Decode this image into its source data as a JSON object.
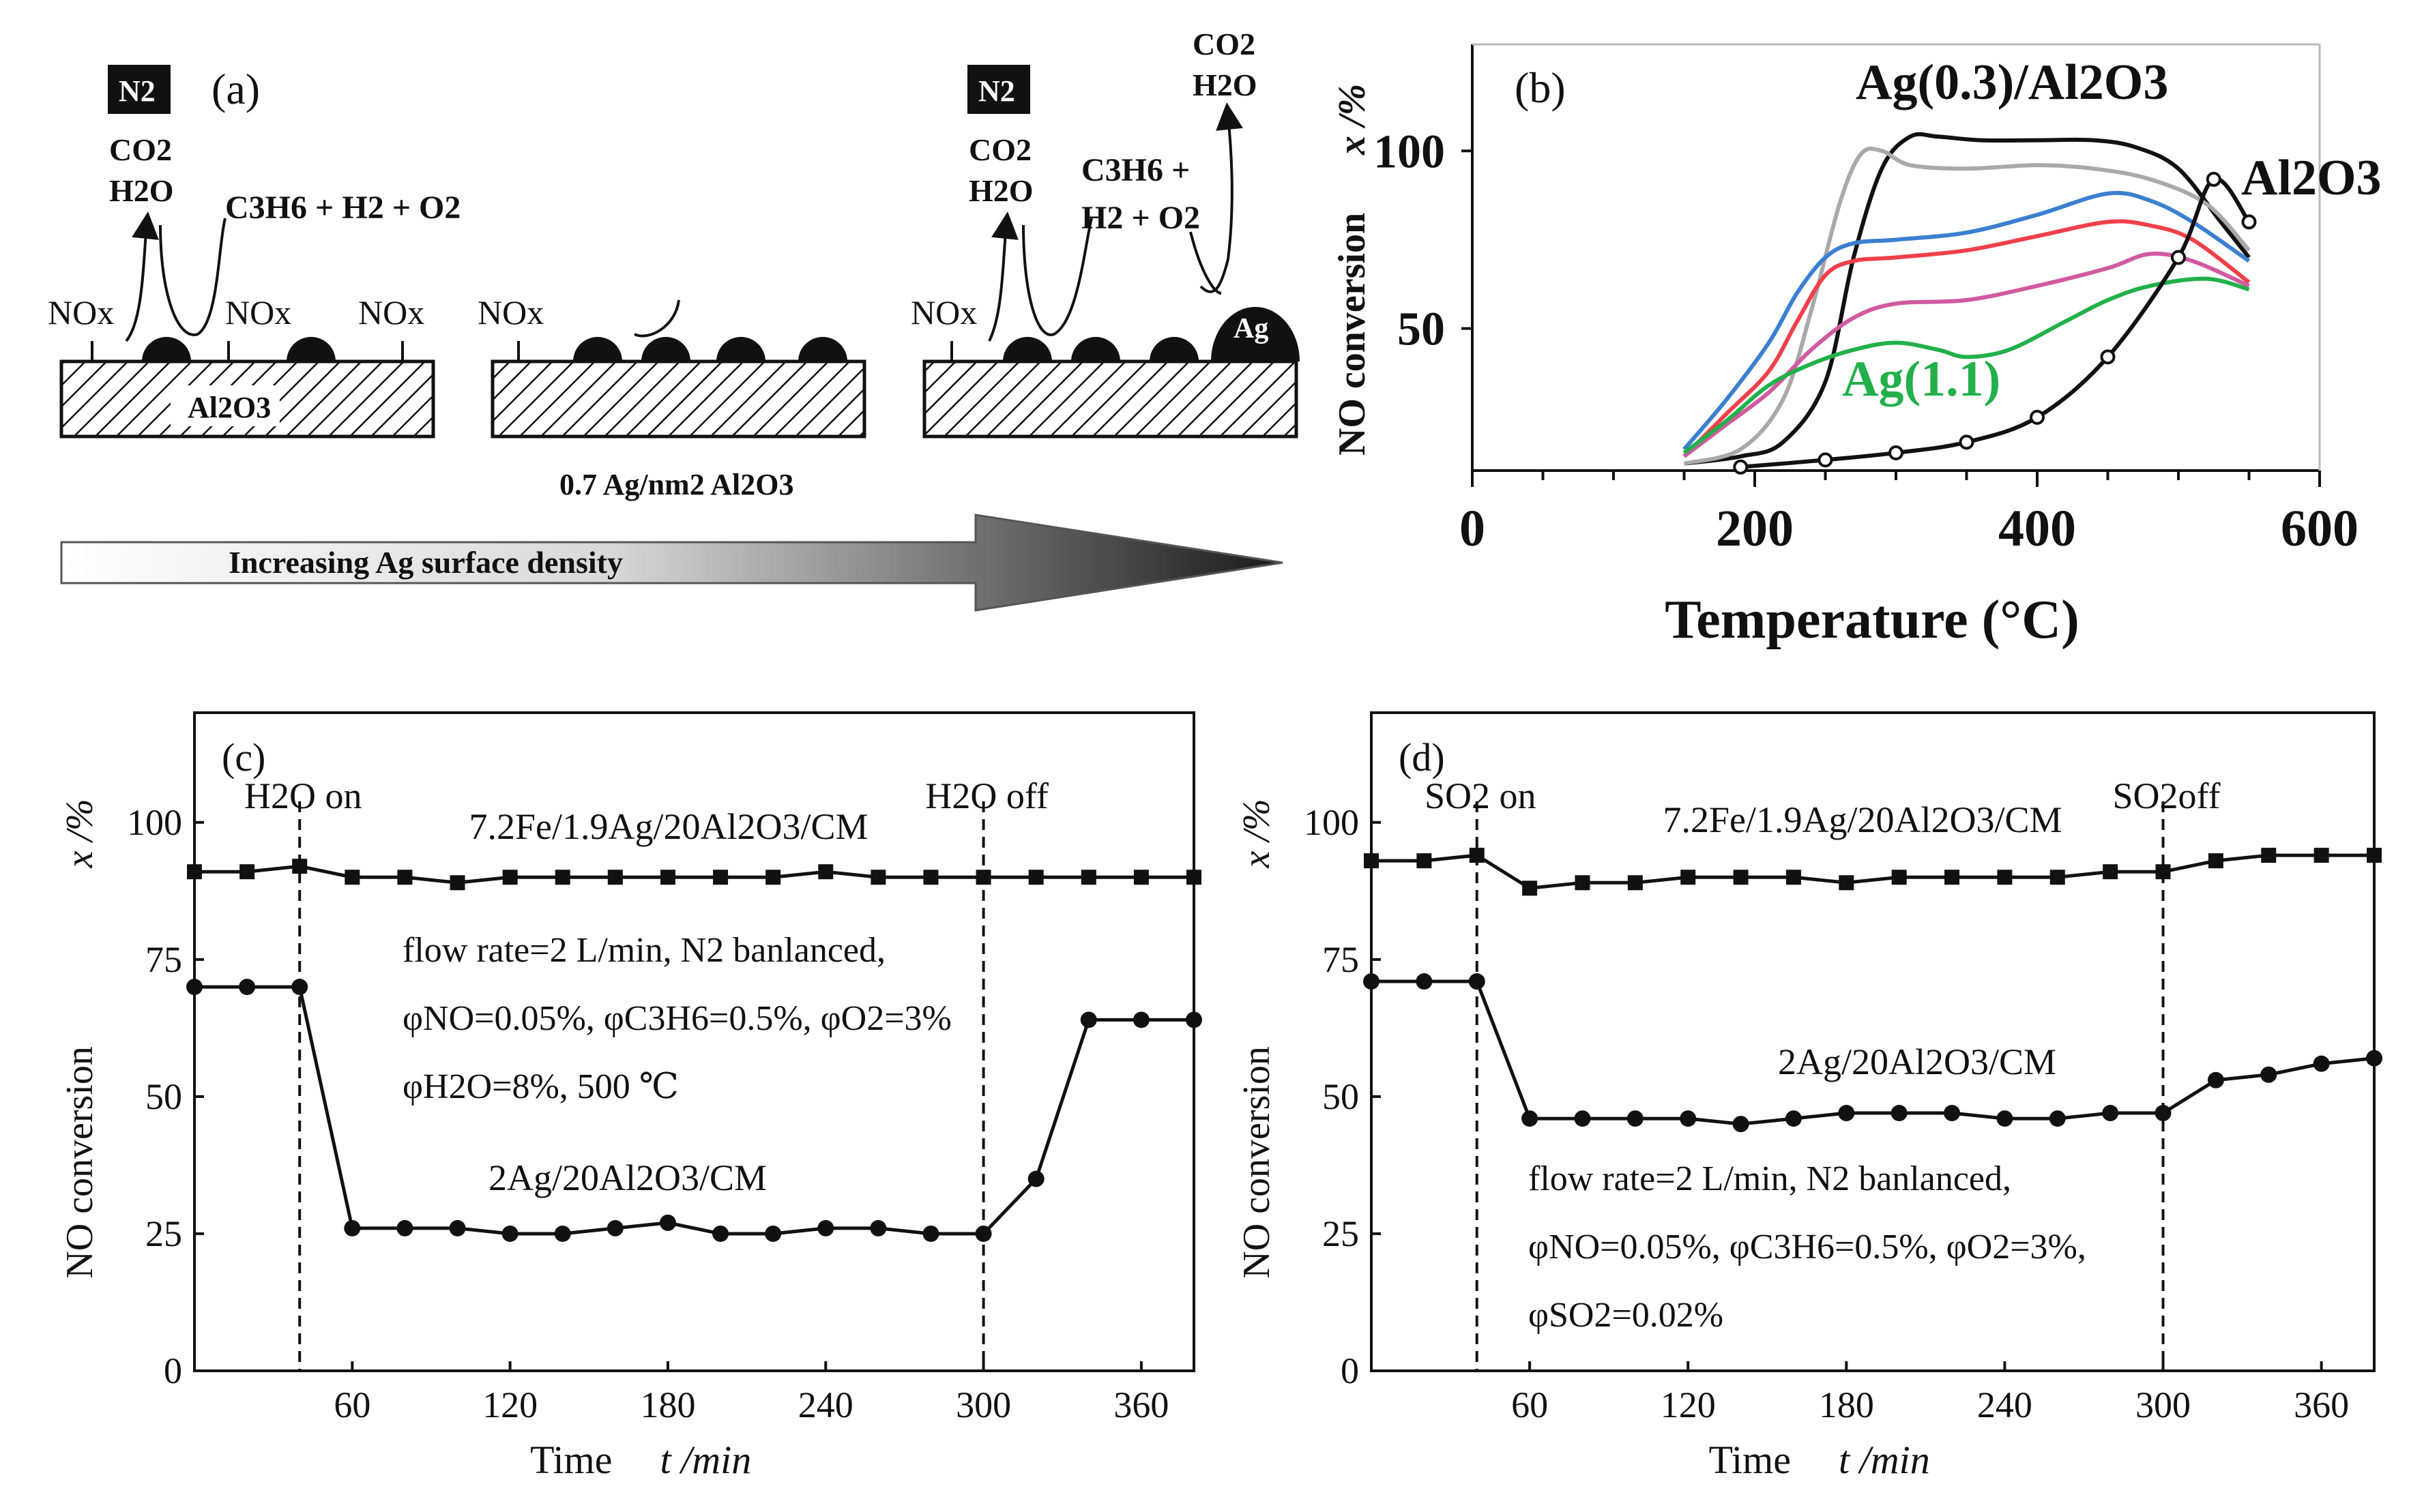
{
  "panel_a": {
    "label": "(a)",
    "n2_badge": "N2",
    "co2": "CO2",
    "h2o": "H2O",
    "reactants_left": "C3H6 + H2 + O2",
    "reactants_right_line1": "C3H6 +",
    "reactants_right_line2": "H2 + O2",
    "nox": "NOx",
    "support": "Al2O3",
    "ag_label": "Ag",
    "density_label": "0.7 Ag/nm2 Al2O3",
    "arrow_label": "Increasing Ag surface density"
  },
  "colors": {
    "black": "#111111",
    "gray": "#a9a9a9",
    "blue": "#3b7fd0",
    "red": "#f0404a",
    "magenta": "#d05aa0",
    "green": "#22b04a",
    "green_label": "#22b04a"
  },
  "chart_data": [
    {
      "panel": "(b)",
      "type": "line",
      "title": "",
      "xlabel": "Temperature (°C)",
      "ylabel": "NO conversion",
      "ylabel_unit": "x /%",
      "xlim": [
        0,
        600
      ],
      "ylim": [
        10,
        130
      ],
      "xticks": [
        0,
        200,
        400,
        600
      ],
      "yticks": [
        50,
        100
      ],
      "annotations": [
        "Ag(0.3)/Al2O3",
        "Al2O3",
        "Ag(1.1)"
      ],
      "series": [
        {
          "name": "Ag(0.3)/Al2O3",
          "color": "black",
          "x": [
            150,
            190,
            220,
            250,
            270,
            290,
            310,
            330,
            360,
            400,
            440,
            470,
            500,
            530,
            550
          ],
          "y": [
            12,
            14,
            18,
            35,
            70,
            95,
            104,
            104,
            103,
            103,
            103,
            101,
            95,
            80,
            70
          ]
        },
        {
          "name": "gray",
          "color": "gray",
          "x": [
            150,
            190,
            220,
            240,
            260,
            275,
            290,
            310,
            350,
            400,
            440,
            480,
            520,
            550
          ],
          "y": [
            12,
            16,
            30,
            55,
            85,
            99,
            100,
            96,
            95,
            96,
            95,
            92,
            85,
            72
          ]
        },
        {
          "name": "blue",
          "color": "blue",
          "x": [
            150,
            180,
            210,
            230,
            250,
            270,
            300,
            350,
            400,
            450,
            480,
            510,
            550
          ],
          "y": [
            16,
            30,
            46,
            60,
            70,
            74,
            75,
            77,
            82,
            88,
            86,
            80,
            69
          ]
        },
        {
          "name": "red",
          "color": "red",
          "x": [
            150,
            180,
            210,
            230,
            250,
            270,
            300,
            350,
            400,
            450,
            480,
            510,
            550
          ],
          "y": [
            14,
            26,
            38,
            52,
            65,
            69,
            70,
            72,
            76,
            80,
            79,
            75,
            63
          ]
        },
        {
          "name": "magenta",
          "color": "magenta",
          "x": [
            150,
            180,
            210,
            240,
            270,
            300,
            350,
            400,
            450,
            480,
            510,
            550
          ],
          "y": [
            14,
            23,
            32,
            44,
            53,
            57,
            58,
            62,
            67,
            71,
            69,
            62
          ]
        },
        {
          "name": "Ag(1.1)",
          "color": "green",
          "x": [
            150,
            180,
            210,
            240,
            270,
            300,
            330,
            350,
            380,
            420,
            450,
            480,
            520,
            550
          ],
          "y": [
            15,
            24,
            34,
            40,
            44,
            46,
            44,
            42,
            44,
            52,
            58,
            62,
            64,
            61
          ]
        },
        {
          "name": "Al2O3",
          "color": "black",
          "markers": true,
          "x": [
            190,
            250,
            300,
            350,
            400,
            450,
            500,
            525,
            550
          ],
          "y": [
            11,
            13,
            15,
            18,
            25,
            42,
            70,
            92,
            80
          ]
        }
      ]
    },
    {
      "panel": "(c)",
      "type": "line",
      "title": "",
      "xlabel": "Time",
      "xlabel_unit": "t /min",
      "ylabel": "NO conversion",
      "ylabel_unit": "x /%",
      "xlim": [
        0,
        380
      ],
      "ylim": [
        0,
        120
      ],
      "xticks": [
        60,
        120,
        180,
        240,
        300,
        360
      ],
      "yticks": [
        0,
        25,
        50,
        75,
        100
      ],
      "vlines": [
        {
          "x": 40,
          "label": "H2O on"
        },
        {
          "x": 300,
          "label": "H2O off"
        }
      ],
      "annotations": [
        "flow rate=2 L/min, N2 banlanced,",
        "φNO=0.05%, φC3H6=0.5%, φO2=3%",
        "φH2O=8%, 500 ℃"
      ],
      "series": [
        {
          "name": "7.2Fe/1.9Ag/20Al2O3/CM",
          "marker": "square",
          "x": [
            0,
            20,
            40,
            60,
            80,
            100,
            120,
            140,
            160,
            180,
            200,
            220,
            240,
            260,
            280,
            300,
            320,
            340,
            360,
            380
          ],
          "y": [
            91,
            91,
            92,
            90,
            90,
            89,
            90,
            90,
            90,
            90,
            90,
            90,
            91,
            90,
            90,
            90,
            90,
            90,
            90,
            90
          ]
        },
        {
          "name": "2Ag/20Al2O3/CM",
          "marker": "circle",
          "x": [
            0,
            20,
            40,
            60,
            80,
            100,
            120,
            140,
            160,
            180,
            200,
            220,
            240,
            260,
            280,
            300,
            320,
            340,
            360,
            380
          ],
          "y": [
            70,
            70,
            70,
            26,
            26,
            26,
            25,
            25,
            26,
            27,
            25,
            25,
            26,
            26,
            25,
            25,
            35,
            64,
            64,
            64
          ]
        }
      ]
    },
    {
      "panel": "(d)",
      "type": "line",
      "title": "",
      "xlabel": "Time",
      "xlabel_unit": "t /min",
      "ylabel": "NO conversion",
      "ylabel_unit": "x /%",
      "xlim": [
        0,
        380
      ],
      "ylim": [
        0,
        120
      ],
      "xticks": [
        60,
        120,
        180,
        240,
        300,
        360
      ],
      "yticks": [
        0,
        25,
        50,
        75,
        100
      ],
      "vlines": [
        {
          "x": 40,
          "label": "SO2 on"
        },
        {
          "x": 300,
          "label": "SO2off"
        }
      ],
      "annotations": [
        "flow rate=2 L/min, N2 banlanced,",
        "φNO=0.05%, φC3H6=0.5%, φO2=3%,",
        "φSO2=0.02%"
      ],
      "series": [
        {
          "name": "7.2Fe/1.9Ag/20Al2O3/CM",
          "marker": "square",
          "x": [
            0,
            20,
            40,
            60,
            80,
            100,
            120,
            140,
            160,
            180,
            200,
            220,
            240,
            260,
            280,
            300,
            320,
            340,
            360,
            380
          ],
          "y": [
            93,
            93,
            94,
            88,
            89,
            89,
            90,
            90,
            90,
            89,
            90,
            90,
            90,
            90,
            91,
            91,
            93,
            94,
            94,
            94
          ]
        },
        {
          "name": "2Ag/20Al2O3/CM",
          "marker": "circle",
          "x": [
            0,
            20,
            40,
            60,
            80,
            100,
            120,
            140,
            160,
            180,
            200,
            220,
            240,
            260,
            280,
            300,
            320,
            340,
            360,
            380
          ],
          "y": [
            71,
            71,
            71,
            46,
            46,
            46,
            46,
            45,
            46,
            47,
            47,
            47,
            46,
            46,
            47,
            47,
            53,
            54,
            56,
            57
          ]
        }
      ]
    }
  ]
}
